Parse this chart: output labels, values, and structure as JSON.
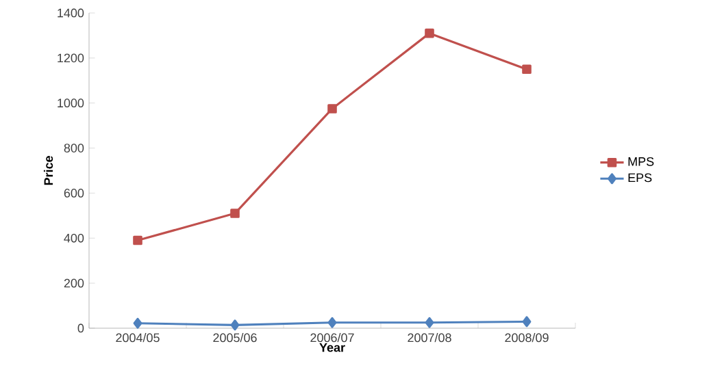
{
  "chart_data": {
    "type": "line",
    "xlabel": "Year",
    "ylabel": "Price",
    "categories": [
      "2004/05",
      "2005/06",
      "2006/07",
      "2007/08",
      "2008/09"
    ],
    "series": [
      {
        "name": "MPS",
        "color": "#c0504d",
        "marker": "square",
        "values": [
          390,
          510,
          975,
          1310,
          1150
        ]
      },
      {
        "name": "EPS",
        "color": "#4f81bd",
        "marker": "diamond",
        "values": [
          22,
          14,
          25,
          25,
          29
        ]
      }
    ],
    "ylim": [
      0,
      1400
    ],
    "yticks": [
      0,
      200,
      400,
      600,
      800,
      1000,
      1200,
      1400
    ],
    "grid": false,
    "legend": "right"
  }
}
